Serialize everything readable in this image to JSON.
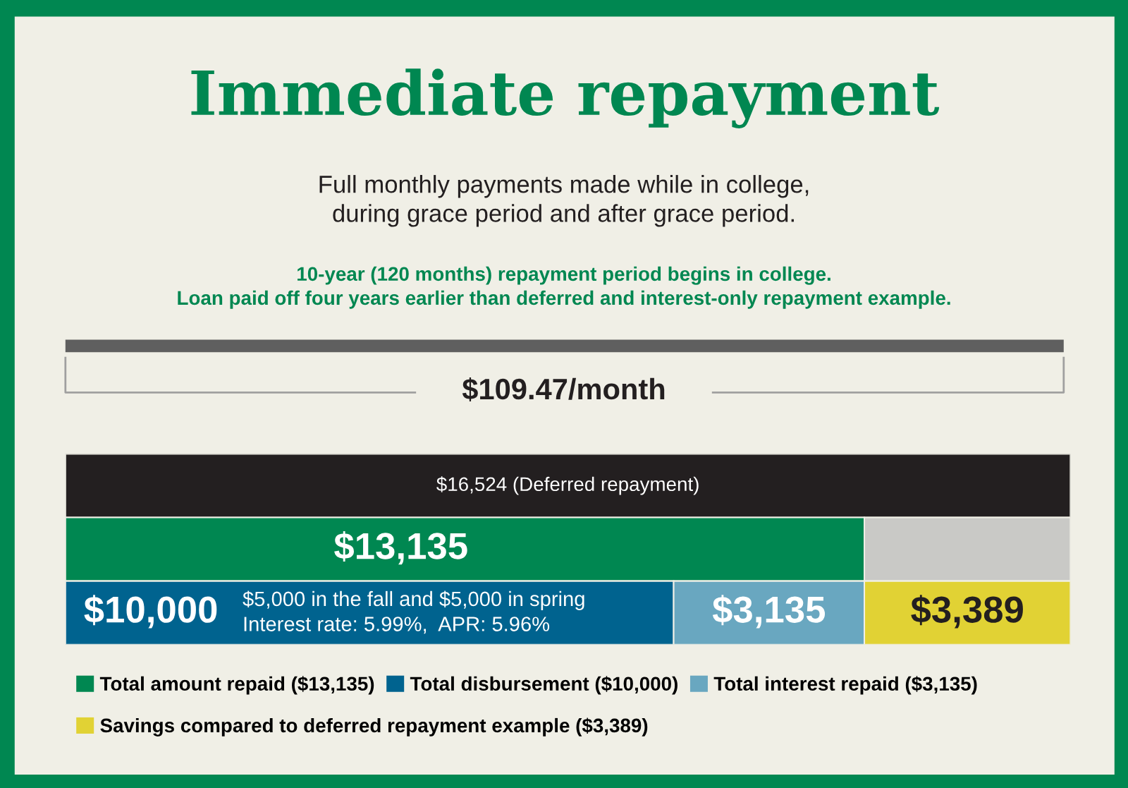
{
  "chart_data": {
    "type": "bar",
    "orientation": "horizontal",
    "stacked": true,
    "title": "Immediate repayment",
    "subtitle": "Full monthly payments made while in college,\nduring grace period and after grace period.",
    "categories": [
      null,
      null,
      null
    ],
    "series": [
      {
        "color": "#231f20",
        "values": [
          16524,
          null,
          null
        ],
        "value_labels": [
          "$16,524 (Deferred repayment)",
          null,
          null
        ]
      },
      {
        "name": "Total amount repaid ($13,135)",
        "color": "#008751",
        "values": [
          null,
          13135,
          null
        ],
        "value_labels": [
          null,
          "$13,135",
          null
        ]
      },
      {
        "color": "#c9c9c6",
        "values": [
          null,
          3389,
          null
        ]
      },
      {
        "name": "Total disbursement ($10,000)",
        "color": "#00638f",
        "values": [
          null,
          null,
          10000
        ],
        "value_labels": [
          null,
          null,
          "$10,000"
        ]
      },
      {
        "name": "Total interest repaid ($3,135)",
        "color": "#69a7c0",
        "values": [
          null,
          null,
          3135
        ],
        "value_labels": [
          null,
          null,
          "$3,135"
        ]
      },
      {
        "name": "Savings compared to deferred repayment example ($3,389)",
        "color": "#e1d234",
        "values": [
          null,
          null,
          3389
        ],
        "value_labels": [
          null,
          null,
          "$3,389"
        ]
      }
    ],
    "annotations": [
      "10-year (120 months) repayment period begins in college.\nLoan paid off four years earlier than deferred and interest-only repayment example.",
      "$109.47/month",
      "$5,000 in the fall and $5,000 in spring\nInterest rate: 5.99%,  APR: 5.96%"
    ],
    "legend": "bottom",
    "grid": false,
    "tick_labels": false
  }
}
